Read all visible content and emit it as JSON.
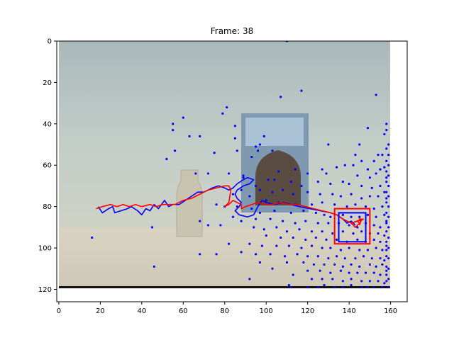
{
  "chart_data": {
    "type": "scatter",
    "title": "Frame: 38",
    "xlabel": "",
    "ylabel": "",
    "xlim": [
      -1,
      168
    ],
    "ylim": [
      126,
      0
    ],
    "x_ticks": [
      0,
      20,
      40,
      60,
      80,
      100,
      120,
      140,
      160
    ],
    "y_ticks": [
      0,
      20,
      40,
      60,
      80,
      100,
      120
    ],
    "grid": false,
    "legend": "none",
    "image_extent": {
      "x": [
        0,
        160
      ],
      "y": [
        0,
        120
      ]
    },
    "image_colors": {
      "wall": "#b8c6c4",
      "table": "#d8d3c4",
      "edge": "#1a1a1a"
    },
    "particle_color": "#0000ff",
    "particles": [
      [
        110,
        0
      ],
      [
        117,
        24
      ],
      [
        107,
        27
      ],
      [
        81,
        32
      ],
      [
        79,
        35
      ],
      [
        60,
        37
      ],
      [
        55,
        40
      ],
      [
        85,
        41
      ],
      [
        55,
        43
      ],
      [
        63,
        46
      ],
      [
        68,
        46
      ],
      [
        85,
        47
      ],
      [
        99,
        46
      ],
      [
        95,
        51
      ],
      [
        97,
        50
      ],
      [
        130,
        50
      ],
      [
        158,
        40
      ],
      [
        158,
        43
      ],
      [
        157,
        45
      ],
      [
        149,
        42
      ],
      [
        159,
        50
      ],
      [
        158,
        52
      ],
      [
        153,
        26
      ],
      [
        145,
        50
      ],
      [
        56,
        53
      ],
      [
        75,
        54
      ],
      [
        86,
        53
      ],
      [
        96,
        53
      ],
      [
        103,
        53
      ],
      [
        52,
        57
      ],
      [
        93,
        56
      ],
      [
        143,
        55
      ],
      [
        146,
        58
      ],
      [
        154,
        55
      ],
      [
        156,
        55
      ],
      [
        152,
        58
      ],
      [
        138,
        60
      ],
      [
        142,
        60
      ],
      [
        149,
        62
      ],
      [
        155,
        62
      ],
      [
        157,
        61
      ],
      [
        127,
        62
      ],
      [
        129,
        64
      ],
      [
        72,
        64
      ],
      [
        89,
        65
      ],
      [
        106,
        63
      ],
      [
        114,
        62
      ],
      [
        120,
        64
      ],
      [
        134,
        61
      ],
      [
        144,
        65
      ],
      [
        150,
        66
      ],
      [
        153,
        64
      ],
      [
        158,
        66
      ],
      [
        66,
        64
      ],
      [
        82,
        64
      ],
      [
        89,
        66
      ],
      [
        101,
        67
      ],
      [
        104,
        67
      ],
      [
        112,
        68
      ],
      [
        117,
        70
      ],
      [
        125,
        68
      ],
      [
        131,
        69
      ],
      [
        137,
        68
      ],
      [
        140,
        69
      ],
      [
        146,
        70
      ],
      [
        151,
        71
      ],
      [
        155,
        70
      ],
      [
        157,
        73
      ],
      [
        95,
        70
      ],
      [
        97,
        72
      ],
      [
        103,
        73
      ],
      [
        108,
        72
      ],
      [
        113,
        74
      ],
      [
        120,
        73
      ],
      [
        126,
        74
      ],
      [
        132,
        74
      ],
      [
        136,
        75
      ],
      [
        141,
        74
      ],
      [
        146,
        76
      ],
      [
        150,
        75
      ],
      [
        154,
        75
      ],
      [
        158,
        76
      ],
      [
        84,
        74
      ],
      [
        88,
        72
      ],
      [
        92,
        75
      ],
      [
        100,
        77
      ],
      [
        106,
        78
      ],
      [
        114,
        79
      ],
      [
        122,
        79
      ],
      [
        127,
        78
      ],
      [
        133,
        79
      ],
      [
        139,
        80
      ],
      [
        143,
        79
      ],
      [
        148,
        80
      ],
      [
        152,
        81
      ],
      [
        156,
        80
      ],
      [
        76,
        79
      ],
      [
        80,
        80
      ],
      [
        86,
        80
      ],
      [
        93,
        81
      ],
      [
        97,
        83
      ],
      [
        104,
        82
      ],
      [
        112,
        83
      ],
      [
        118,
        82
      ],
      [
        124,
        83
      ],
      [
        128,
        84
      ],
      [
        131,
        85
      ],
      [
        137,
        84
      ],
      [
        141,
        85
      ],
      [
        145,
        85
      ],
      [
        149,
        84
      ],
      [
        153,
        85
      ],
      [
        157,
        84
      ],
      [
        84,
        85
      ],
      [
        88,
        87
      ],
      [
        95,
        86
      ],
      [
        102,
        86
      ],
      [
        108,
        87
      ],
      [
        114,
        88
      ],
      [
        119,
        87
      ],
      [
        125,
        88
      ],
      [
        130,
        88
      ],
      [
        135,
        88
      ],
      [
        140,
        89
      ],
      [
        144,
        90
      ],
      [
        148,
        88
      ],
      [
        152,
        89
      ],
      [
        155,
        90
      ],
      [
        158,
        88
      ],
      [
        68,
        87
      ],
      [
        72,
        89
      ],
      [
        78,
        89
      ],
      [
        94,
        90
      ],
      [
        99,
        91
      ],
      [
        105,
        90
      ],
      [
        110,
        92
      ],
      [
        116,
        91
      ],
      [
        122,
        92
      ],
      [
        127,
        92
      ],
      [
        132,
        93
      ],
      [
        137,
        92
      ],
      [
        142,
        93
      ],
      [
        146,
        92
      ],
      [
        150,
        93
      ],
      [
        154,
        93
      ],
      [
        157,
        94
      ],
      [
        45,
        90
      ],
      [
        16,
        95
      ],
      [
        100,
        94
      ],
      [
        107,
        95
      ],
      [
        113,
        95
      ],
      [
        119,
        96
      ],
      [
        124,
        95
      ],
      [
        129,
        96
      ],
      [
        134,
        96
      ],
      [
        139,
        97
      ],
      [
        144,
        96
      ],
      [
        148,
        97
      ],
      [
        152,
        96
      ],
      [
        155,
        97
      ],
      [
        158,
        97
      ],
      [
        82,
        98
      ],
      [
        92,
        98
      ],
      [
        98,
        99
      ],
      [
        105,
        99
      ],
      [
        111,
        99
      ],
      [
        117,
        100
      ],
      [
        122,
        99
      ],
      [
        127,
        100
      ],
      [
        131,
        100
      ],
      [
        136,
        101
      ],
      [
        140,
        100
      ],
      [
        145,
        101
      ],
      [
        149,
        101
      ],
      [
        153,
        100
      ],
      [
        156,
        101
      ],
      [
        158,
        101
      ],
      [
        68,
        103
      ],
      [
        76,
        103
      ],
      [
        88,
        102
      ],
      [
        95,
        103
      ],
      [
        102,
        103
      ],
      [
        109,
        104
      ],
      [
        115,
        103
      ],
      [
        120,
        104
      ],
      [
        125,
        104
      ],
      [
        130,
        105
      ],
      [
        134,
        104
      ],
      [
        138,
        105
      ],
      [
        143,
        105
      ],
      [
        147,
        104
      ],
      [
        151,
        105
      ],
      [
        155,
        105
      ],
      [
        157,
        106
      ],
      [
        97,
        107
      ],
      [
        110,
        107
      ],
      [
        118,
        107
      ],
      [
        123,
        108
      ],
      [
        128,
        108
      ],
      [
        133,
        108
      ],
      [
        137,
        109
      ],
      [
        141,
        108
      ],
      [
        145,
        109
      ],
      [
        150,
        108
      ],
      [
        153,
        109
      ],
      [
        156,
        108
      ],
      [
        158,
        109
      ],
      [
        46,
        109
      ],
      [
        103,
        110
      ],
      [
        120,
        111
      ],
      [
        126,
        111
      ],
      [
        131,
        112
      ],
      [
        136,
        111
      ],
      [
        140,
        112
      ],
      [
        144,
        112
      ],
      [
        148,
        112
      ],
      [
        152,
        112
      ],
      [
        155,
        113
      ],
      [
        158,
        113
      ],
      [
        92,
        115
      ],
      [
        113,
        113
      ],
      [
        122,
        115
      ],
      [
        127,
        115
      ],
      [
        132,
        115
      ],
      [
        137,
        116
      ],
      [
        141,
        115
      ],
      [
        146,
        116
      ],
      [
        150,
        116
      ],
      [
        154,
        116
      ],
      [
        157,
        117
      ],
      [
        111,
        118
      ],
      [
        125,
        119
      ],
      [
        128,
        118
      ],
      [
        133,
        119
      ],
      [
        137,
        119
      ],
      [
        141,
        118
      ],
      [
        146,
        119
      ],
      [
        149,
        119
      ],
      [
        152,
        119
      ],
      [
        156,
        119
      ],
      [
        159,
        119
      ],
      [
        112,
        119
      ],
      [
        120,
        119
      ],
      [
        159,
        55
      ],
      [
        159,
        60
      ],
      [
        159,
        65
      ],
      [
        159,
        70
      ],
      [
        159,
        75
      ],
      [
        159,
        80
      ],
      [
        159,
        85
      ],
      [
        159,
        90
      ],
      [
        159,
        95
      ],
      [
        159,
        100
      ],
      [
        159,
        105
      ],
      [
        159,
        110
      ],
      [
        159,
        115
      ],
      [
        158,
        58
      ],
      [
        158,
        63
      ],
      [
        158,
        68
      ],
      [
        158,
        73
      ],
      [
        158,
        78
      ],
      [
        158,
        83
      ],
      [
        158,
        87
      ],
      [
        158,
        92
      ],
      [
        158,
        99
      ],
      [
        158,
        104
      ],
      [
        158,
        111
      ],
      [
        158,
        116
      ]
    ],
    "series": [
      {
        "color": "#0000ff",
        "points": [
          [
            19,
            80
          ],
          [
            21,
            83
          ],
          [
            24,
            81
          ],
          [
            26,
            80
          ],
          [
            27,
            83
          ],
          [
            30,
            82
          ],
          [
            33,
            81
          ],
          [
            35,
            80
          ],
          [
            38,
            82
          ],
          [
            40,
            84
          ],
          [
            42,
            81
          ],
          [
            44,
            82
          ],
          [
            46,
            79
          ],
          [
            48,
            81
          ],
          [
            51,
            77
          ],
          [
            53,
            80
          ],
          [
            55,
            79
          ],
          [
            58,
            79
          ],
          [
            61,
            77
          ],
          [
            64,
            75
          ],
          [
            67,
            73
          ],
          [
            70,
            73
          ],
          [
            74,
            71
          ],
          [
            77,
            70
          ],
          [
            80,
            71
          ],
          [
            82,
            72
          ],
          [
            84,
            71
          ],
          [
            86,
            69
          ],
          [
            89,
            67
          ],
          [
            91,
            66
          ],
          [
            94,
            67
          ],
          [
            92,
            69
          ],
          [
            89,
            70
          ],
          [
            86,
            72
          ],
          [
            85,
            74
          ],
          [
            86,
            76
          ],
          [
            88,
            78
          ],
          [
            87,
            80
          ],
          [
            85,
            82
          ],
          [
            87,
            84
          ],
          [
            91,
            85
          ],
          [
            94,
            84
          ],
          [
            96,
            80
          ],
          [
            98,
            77
          ],
          [
            100,
            78
          ],
          [
            104,
            79
          ],
          [
            108,
            78
          ],
          [
            112,
            79
          ],
          [
            116,
            80
          ],
          [
            121,
            81
          ],
          [
            126,
            82
          ],
          [
            131,
            83
          ],
          [
            134,
            84
          ],
          [
            137,
            86
          ],
          [
            139,
            88
          ],
          [
            141,
            87
          ],
          [
            143,
            89
          ]
        ]
      },
      {
        "color": "#ff0000",
        "points": [
          [
            18,
            81
          ],
          [
            21,
            80
          ],
          [
            25,
            79
          ],
          [
            28,
            80
          ],
          [
            31,
            79
          ],
          [
            34,
            80
          ],
          [
            37,
            79
          ],
          [
            40,
            80
          ],
          [
            44,
            79
          ],
          [
            47,
            80
          ],
          [
            50,
            79
          ],
          [
            53,
            79
          ],
          [
            56,
            79
          ],
          [
            60,
            77
          ],
          [
            64,
            76
          ],
          [
            68,
            74
          ],
          [
            72,
            72
          ],
          [
            76,
            71
          ],
          [
            80,
            70
          ],
          [
            82,
            70
          ],
          [
            83,
            72
          ],
          [
            82,
            78
          ],
          [
            80,
            80
          ],
          [
            82,
            79
          ],
          [
            84,
            77
          ],
          [
            86,
            78
          ],
          [
            88,
            79
          ],
          [
            88,
            81
          ],
          [
            90,
            80
          ],
          [
            93,
            79
          ],
          [
            96,
            78
          ],
          [
            99,
            79
          ],
          [
            103,
            79
          ],
          [
            107,
            78
          ],
          [
            111,
            79
          ],
          [
            115,
            79
          ],
          [
            119,
            80
          ],
          [
            123,
            81
          ],
          [
            127,
            82
          ],
          [
            131,
            83
          ],
          [
            134,
            84
          ],
          [
            137,
            86
          ],
          [
            139,
            87
          ],
          [
            141,
            88
          ],
          [
            142,
            89
          ],
          [
            143,
            90
          ],
          [
            145,
            88
          ],
          [
            144,
            87
          ],
          [
            146,
            86
          ],
          [
            145,
            89
          ]
        ]
      }
    ],
    "boxes": [
      {
        "color": "#ff0000",
        "x": [
          133,
          150
        ],
        "y": [
          81,
          98
        ]
      },
      {
        "color": "#0000ff",
        "x": [
          135,
          148
        ],
        "y": [
          83,
          97
        ]
      }
    ],
    "annotations": [
      {
        "type": "arrow",
        "color": "#ff0000",
        "from": [
          141,
          88
        ],
        "to": [
          147,
          86
        ]
      }
    ]
  }
}
